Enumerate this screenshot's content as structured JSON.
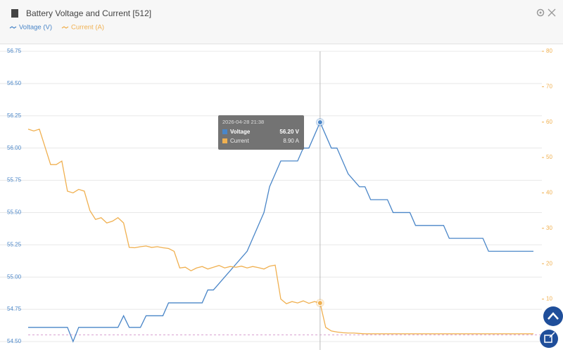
{
  "chart_data": {
    "type": "line",
    "title": "Battery Voltage and Current [512]",
    "x": [
      0,
      1,
      2,
      3,
      4,
      5,
      6,
      7,
      8,
      9,
      10,
      11,
      12,
      13,
      14,
      15,
      16,
      17,
      18,
      19,
      20,
      21,
      22,
      23,
      24,
      25,
      26,
      27,
      28,
      29,
      30,
      31,
      32,
      33,
      34,
      35,
      36,
      37,
      38,
      39,
      40,
      41,
      42,
      43,
      44,
      45,
      46,
      47,
      48,
      49,
      50,
      51,
      52,
      53,
      54,
      55,
      56,
      57,
      58,
      59,
      60,
      61,
      62,
      63,
      64,
      65,
      66,
      67,
      68,
      69,
      70,
      71,
      72,
      73,
      74,
      75,
      76,
      77,
      78,
      79,
      80,
      81,
      82,
      83,
      84,
      85,
      86,
      87,
      88,
      89,
      90
    ],
    "xlim": [
      0,
      90
    ],
    "series": [
      {
        "name": "Voltage (V)",
        "color": "#4a86c8",
        "axis": "y",
        "values": [
          54.61,
          54.61,
          54.61,
          54.61,
          54.61,
          54.61,
          54.61,
          54.61,
          54.5,
          54.61,
          54.61,
          54.61,
          54.61,
          54.61,
          54.61,
          54.61,
          54.61,
          54.7,
          54.61,
          54.61,
          54.61,
          54.7,
          54.7,
          54.7,
          54.7,
          54.8,
          54.8,
          54.8,
          54.8,
          54.8,
          54.8,
          54.8,
          54.9,
          54.9,
          54.95,
          55.0,
          55.05,
          55.1,
          55.15,
          55.2,
          55.3,
          55.4,
          55.5,
          55.7,
          55.8,
          55.9,
          55.9,
          55.9,
          55.9,
          56.0,
          56.0,
          56.1,
          56.2,
          56.1,
          56.0,
          56.0,
          55.9,
          55.8,
          55.75,
          55.7,
          55.7,
          55.6,
          55.6,
          55.6,
          55.6,
          55.5,
          55.5,
          55.5,
          55.5,
          55.4,
          55.4,
          55.4,
          55.4,
          55.4,
          55.4,
          55.3,
          55.3,
          55.3,
          55.3,
          55.3,
          55.3,
          55.3,
          55.2,
          55.2,
          55.2,
          55.2,
          55.2,
          55.2,
          55.2,
          55.2,
          55.2
        ]
      },
      {
        "name": "Current (A)",
        "color": "#f0b050",
        "axis": "y2",
        "values": [
          58,
          57.5,
          58,
          53,
          48,
          48,
          49,
          40.5,
          40,
          41,
          40.5,
          35,
          32.5,
          33,
          31.5,
          32,
          33,
          31.5,
          24.6,
          24.5,
          24.8,
          25,
          24.6,
          24.8,
          24.5,
          24.3,
          23.5,
          18.8,
          19,
          18,
          18.8,
          19.2,
          18.5,
          19,
          19.5,
          18.8,
          19.2,
          19,
          19.3,
          18.8,
          19.2,
          18.9,
          18.5,
          19.3,
          19.6,
          10,
          8.7,
          9.3,
          8.9,
          9.5,
          8.8,
          9.3,
          8.9,
          2.0,
          1.0,
          0.7,
          0.5,
          0.4,
          0.4,
          0.3,
          0.2,
          0.2,
          0.2,
          0.2,
          0.2,
          0.2,
          0.2,
          0.2,
          0.2,
          0.2,
          0.2,
          0.2,
          0.2,
          0.2,
          0.2,
          0.2,
          0.2,
          0.2,
          0.2,
          0.2,
          0.2,
          0.2,
          0.2,
          0.2,
          0.2,
          0.2,
          0.2,
          0.2,
          0.2,
          0.2,
          0.2
        ]
      }
    ],
    "ylim": [
      54.5,
      56.75
    ],
    "yticks": [
      {
        "value": 54.5,
        "label": "54.50"
      },
      {
        "value": 54.75,
        "label": "54.75"
      },
      {
        "value": 55,
        "label": "55.00"
      },
      {
        "value": 55.25,
        "label": "55.25"
      },
      {
        "value": 55.5,
        "label": "55.50"
      },
      {
        "value": 55.75,
        "label": "55.75"
      },
      {
        "value": 56,
        "label": "56.00"
      },
      {
        "value": 56.25,
        "label": "56.25"
      },
      {
        "value": 56.5,
        "label": "56.50"
      },
      {
        "value": 56.75,
        "label": "56.75"
      }
    ],
    "y2lim": [
      -2,
      80
    ],
    "y2ticks": [
      10,
      20,
      30,
      40,
      50,
      60,
      70,
      80
    ],
    "grid": true,
    "tooltip": {
      "index": 52,
      "title": "2026-04-28 21:38",
      "items": [
        {
          "name": "Voltage",
          "value": "56.20 V"
        },
        {
          "name": "Current",
          "value": "8.90 A"
        }
      ]
    }
  }
}
